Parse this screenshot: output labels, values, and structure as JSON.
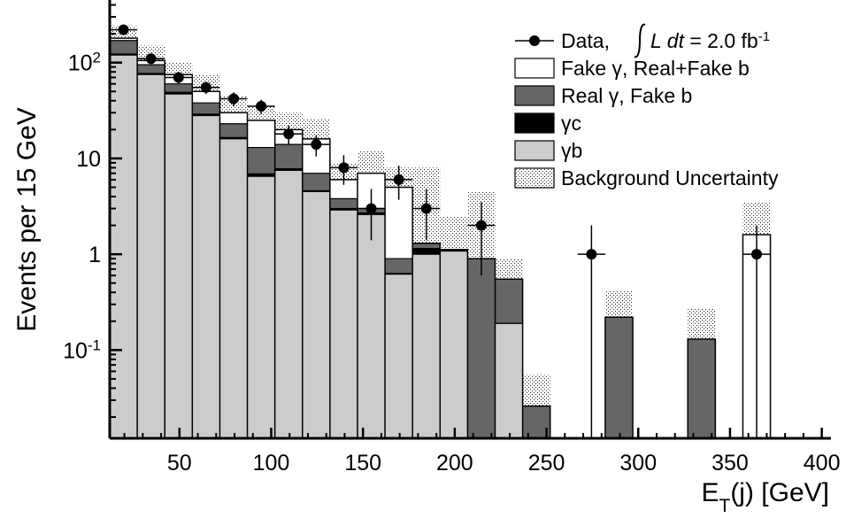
{
  "chart_data": {
    "type": "bar",
    "title": "",
    "xlabel": "E_T(j) [GeV]",
    "ylabel": "Events per 15 GeV",
    "xlim": [
      12,
      405
    ],
    "ylim": [
      0.012,
      450
    ],
    "y_scale": "log",
    "x_ticks": [
      {
        "value": 50,
        "label": "50"
      },
      {
        "value": 100,
        "label": "100"
      },
      {
        "value": 150,
        "label": "150"
      },
      {
        "value": 200,
        "label": "200"
      },
      {
        "value": 250,
        "label": "250"
      },
      {
        "value": 300,
        "label": "300"
      },
      {
        "value": 350,
        "label": "350"
      },
      {
        "value": 400,
        "label": "400"
      }
    ],
    "y_ticks": [
      {
        "value": 100,
        "base": "10",
        "exp": "2"
      },
      {
        "value": 10,
        "base": "10",
        "exp": ""
      },
      {
        "value": 1,
        "base": "1",
        "exp": ""
      },
      {
        "value": 0.1,
        "base": "10",
        "exp": "-1"
      }
    ],
    "bins": [
      {
        "lo": 12,
        "hi": 27,
        "gb": 120,
        "gc": 123,
        "real": 170,
        "fake": 180,
        "unc_lo": 155,
        "unc_hi": 240
      },
      {
        "lo": 27,
        "hi": 42,
        "gb": 75,
        "gc": 77,
        "real": 95,
        "fake": 105,
        "unc_lo": 85,
        "unc_hi": 150
      },
      {
        "lo": 42,
        "hi": 57,
        "gb": 47,
        "gc": 49,
        "real": 60,
        "fake": 75,
        "unc_lo": 63,
        "unc_hi": 100
      },
      {
        "lo": 57,
        "hi": 72,
        "gb": 28,
        "gc": 29,
        "real": 38,
        "fake": 50,
        "unc_lo": 42,
        "unc_hi": 75
      },
      {
        "lo": 72,
        "hi": 87,
        "gb": 16,
        "gc": 16.5,
        "real": 23,
        "fake": 30,
        "unc_lo": 24,
        "unc_hi": 45
      },
      {
        "lo": 87,
        "hi": 102,
        "gb": 6.5,
        "gc": 6.9,
        "real": 13,
        "fake": 25,
        "unc_lo": 18,
        "unc_hi": 35
      },
      {
        "lo": 102,
        "hi": 117,
        "gb": 7.5,
        "gc": 7.8,
        "real": 14,
        "fake": 20,
        "unc_lo": 14,
        "unc_hi": 30
      },
      {
        "lo": 117,
        "hi": 132,
        "gb": 4.5,
        "gc": 4.6,
        "real": 7,
        "fake": 16,
        "unc_lo": 10,
        "unc_hi": 26
      },
      {
        "lo": 132,
        "hi": 147,
        "gb": 2.9,
        "gc": 3.0,
        "real": 3.8,
        "fake": 6,
        "unc_lo": 3.5,
        "unc_hi": 9
      },
      {
        "lo": 147,
        "hi": 162,
        "gb": 2.6,
        "gc": 2.7,
        "real": 3.0,
        "fake": 7,
        "unc_lo": 4,
        "unc_hi": 12
      },
      {
        "lo": 162,
        "hi": 177,
        "gb": 0.62,
        "gc": 0.63,
        "real": 0.9,
        "fake": 5,
        "unc_lo": 0.9,
        "unc_hi": 8
      },
      {
        "lo": 177,
        "hi": 192,
        "gb": 1.0,
        "gc": 1.15,
        "real": 1.3,
        "fake": 1.3,
        "unc_lo": 0.9,
        "unc_hi": 8
      },
      {
        "lo": 192,
        "hi": 207,
        "gb": 1.08,
        "gc": 1.1,
        "real": 1.12,
        "fake": 1.12,
        "unc_lo": 0.3,
        "unc_hi": 2.5
      },
      {
        "lo": 207,
        "hi": 222,
        "gb": 0,
        "gc": 0,
        "real": 0.9,
        "fake": 0.9,
        "unc_lo": 0.12,
        "unc_hi": 4.5
      },
      {
        "lo": 222,
        "hi": 237,
        "gb": 0.19,
        "gc": 0.19,
        "real": 0.55,
        "fake": 0.55,
        "unc_lo": 0.1,
        "unc_hi": 0.9
      },
      {
        "lo": 237,
        "hi": 252,
        "gb": 0,
        "gc": 0,
        "real": 0.026,
        "fake": 0.026,
        "unc_lo": 0.018,
        "unc_hi": 0.055
      },
      {
        "lo": 282,
        "hi": 297,
        "gb": 0,
        "gc": 0,
        "real": 0.22,
        "fake": 0.22,
        "unc_lo": 0.15,
        "unc_hi": 0.42
      },
      {
        "lo": 327,
        "hi": 342,
        "gb": 0,
        "gc": 0,
        "real": 0.13,
        "fake": 0.13,
        "unc_lo": 0.09,
        "unc_hi": 0.27
      },
      {
        "lo": 357,
        "hi": 372,
        "gb": 0,
        "gc": 0,
        "real": 0,
        "fake": 1.6,
        "unc_lo": 0.5,
        "unc_hi": 3.5
      }
    ],
    "data_points": [
      {
        "x": 19.5,
        "y": 220,
        "ylo": 200,
        "yhi": 240
      },
      {
        "x": 34.5,
        "y": 110,
        "ylo": 97,
        "yhi": 124
      },
      {
        "x": 49.5,
        "y": 70,
        "ylo": 60,
        "yhi": 80
      },
      {
        "x": 64.5,
        "y": 55,
        "ylo": 47,
        "yhi": 63
      },
      {
        "x": 79.5,
        "y": 42,
        "ylo": 35,
        "yhi": 49
      },
      {
        "x": 94.5,
        "y": 35,
        "ylo": 29,
        "yhi": 41
      },
      {
        "x": 109.5,
        "y": 18,
        "ylo": 14,
        "yhi": 22
      },
      {
        "x": 124.5,
        "y": 14,
        "ylo": 10.5,
        "yhi": 17.5
      },
      {
        "x": 139.5,
        "y": 8,
        "ylo": 5.3,
        "yhi": 10.8
      },
      {
        "x": 154.5,
        "y": 3,
        "ylo": 1.4,
        "yhi": 4.8
      },
      {
        "x": 169.5,
        "y": 6,
        "ylo": 3.7,
        "yhi": 8.4
      },
      {
        "x": 184.5,
        "y": 3,
        "ylo": 1.4,
        "yhi": 4.8
      },
      {
        "x": 214.5,
        "y": 2,
        "ylo": 0.6,
        "yhi": 3.5
      },
      {
        "x": 274.5,
        "y": 1,
        "ylo": 0.012,
        "yhi": 2.0
      },
      {
        "x": 364.5,
        "y": 1,
        "ylo": 0.012,
        "yhi": 2.0
      }
    ],
    "legend": {
      "placement": "top-right",
      "entries": [
        {
          "key": "data",
          "label": "Data,",
          "lumi_var": "L",
          "lumi_dt": "dt",
          "lumi_val": "= 2.0 fb",
          "lumi_exp": "-1"
        },
        {
          "key": "fake",
          "label": "Fake γ, Real+Fake b"
        },
        {
          "key": "real",
          "label": "Real γ, Fake b"
        },
        {
          "key": "gc",
          "label": "γc"
        },
        {
          "key": "gb",
          "label": "γb"
        },
        {
          "key": "unc",
          "label": "Background Uncertainty"
        }
      ]
    },
    "colors": {
      "gb": "#cccccc",
      "gc": "#000000",
      "real": "#666666",
      "fake": "#ffffff",
      "axis": "#000000"
    }
  }
}
